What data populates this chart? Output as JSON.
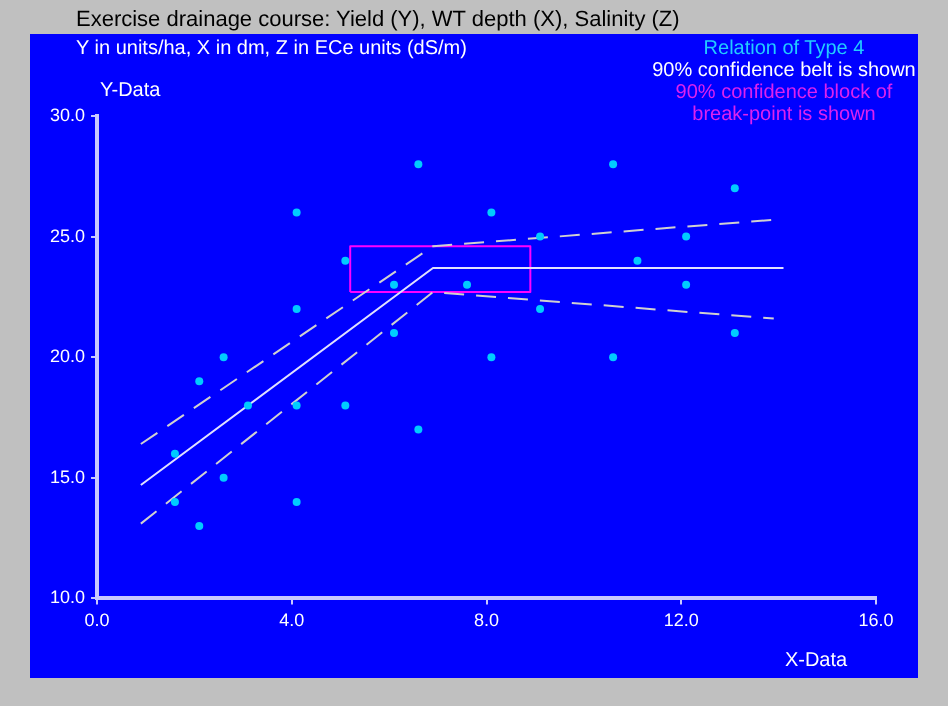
{
  "chart_data": {
    "type": "scatter",
    "title": "Exercise drainage course: Yield (Y), WT depth (X), Salinity (Z)",
    "subtitle": "Y in units/ha, X in dm, Z in ECe units (dS/m)",
    "xlabel": "X-Data",
    "ylabel": "Y-Data",
    "annotations": [
      "Relation of Type 4",
      "90% confidence belt is shown",
      "90% confidence block of break-point is shown"
    ],
    "xlim": [
      0,
      16
    ],
    "xticks": [
      {
        "value": 0,
        "label": "0.0"
      },
      {
        "value": 4,
        "label": "4.0"
      },
      {
        "value": 8,
        "label": "8.0"
      },
      {
        "value": 12,
        "label": "12.0"
      },
      {
        "value": 16,
        "label": "16.0"
      }
    ],
    "ylim": [
      10,
      30
    ],
    "yticks": [
      {
        "value": 10,
        "label": "10.0"
      },
      {
        "value": 15,
        "label": "15.0"
      },
      {
        "value": 20,
        "label": "20.0"
      },
      {
        "value": 25,
        "label": "25.0"
      },
      {
        "value": 30,
        "label": "30.0"
      }
    ],
    "grid": false,
    "legend": false,
    "marker": "circle",
    "series": [
      {
        "type": "scatter",
        "color": "#00ccff",
        "x": [
          4.1,
          5.1,
          6.1,
          4.1,
          6.1,
          2.6,
          2.1,
          3.1,
          4.1,
          5.1,
          6.6,
          1.6,
          2.6,
          1.6,
          4.1,
          2.1,
          7.6,
          6.6,
          10.6,
          13.1,
          8.1,
          9.1,
          12.1,
          11.1,
          12.1,
          9.1,
          13.1,
          8.1,
          10.6
        ],
        "values": [
          26,
          24,
          23,
          22,
          21,
          20,
          19,
          18,
          18,
          18,
          17,
          16,
          15,
          14,
          14,
          13,
          23,
          28,
          28,
          27,
          26,
          25,
          25,
          24,
          23,
          22,
          21,
          20,
          20
        ]
      },
      {
        "type": "line",
        "color": "#e0e0ff",
        "line_style": "solid",
        "marker": "none",
        "x": [
          0.9,
          6.9,
          14.1
        ],
        "values": [
          14.7,
          23.7,
          23.7
        ]
      },
      {
        "type": "line",
        "color": "#d0d0d0",
        "line_style": "dashed",
        "marker": "none",
        "x": [
          0.9,
          6.9,
          13.9
        ],
        "values": [
          16.4,
          24.6,
          25.7
        ]
      },
      {
        "type": "line",
        "color": "#d0d0d0",
        "line_style": "dashed",
        "marker": "none",
        "x": [
          0.9,
          6.9,
          13.9
        ],
        "values": [
          13.1,
          22.7,
          21.6
        ]
      },
      {
        "type": "line",
        "color": "#ff00ff",
        "line_style": "solid",
        "marker": "none",
        "x": [
          5.2,
          5.2,
          8.9,
          8.9
        ],
        "values": [
          22.7,
          24.6,
          24.6,
          22.7
        ]
      },
      {
        "type": "line",
        "color": "#ff00ff",
        "line_style": "solid",
        "marker": "none",
        "x": [
          5.2,
          8.9
        ],
        "values": [
          22.7,
          22.7
        ]
      }
    ]
  }
}
